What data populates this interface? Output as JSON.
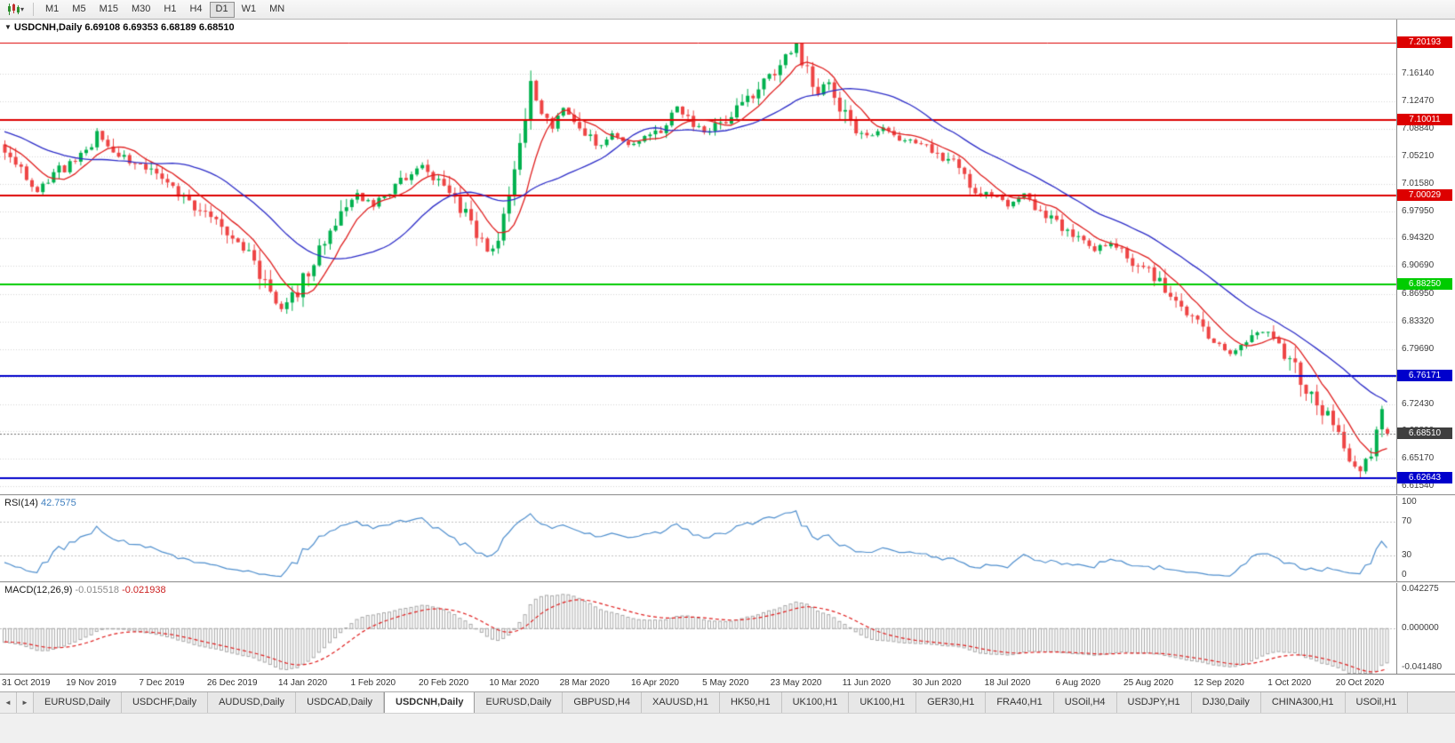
{
  "toolbar": {
    "timeframes": [
      "M1",
      "M5",
      "M15",
      "M30",
      "H1",
      "H4",
      "D1",
      "W1",
      "MN"
    ],
    "active": "D1"
  },
  "icons": {
    "chart_collapse": "▼",
    "toolbar_caret": "▾",
    "tab_scroll_left": "◄",
    "tab_scroll_right": "►"
  },
  "chart_data": {
    "type": "candlestick",
    "symbol": "USDCNH",
    "timeframe": "Daily",
    "title_full": "USDCNH,Daily 6.69108 6.69353 6.68189 6.68510",
    "ohlc": {
      "open": "6.69108",
      "high": "6.69353",
      "low": "6.68189",
      "close": "6.68510"
    },
    "ylim": [
      6.605,
      7.233
    ],
    "y_ticks": [
      {
        "label": "7.16140",
        "value": 7.1614
      },
      {
        "label": "7.12470",
        "value": 7.1247
      },
      {
        "label": "7.08840",
        "value": 7.0884
      },
      {
        "label": "7.05210",
        "value": 7.0521
      },
      {
        "label": "7.01580",
        "value": 7.0158
      },
      {
        "label": "6.97950",
        "value": 6.9795
      },
      {
        "label": "6.94320",
        "value": 6.9432
      },
      {
        "label": "6.90690",
        "value": 6.9069
      },
      {
        "label": "6.86950",
        "value": 6.8695
      },
      {
        "label": "6.83320",
        "value": 6.8332
      },
      {
        "label": "6.79690",
        "value": 6.7969
      },
      {
        "label": "6.76060",
        "value": 6.7606
      },
      {
        "label": "6.72430",
        "value": 6.7243
      },
      {
        "label": "6.68800",
        "value": 6.688
      },
      {
        "label": "6.65170",
        "value": 6.6517
      },
      {
        "label": "6.61540",
        "value": 6.6154
      }
    ],
    "x_labels": [
      "31 Oct 2019",
      "19 Nov 2019",
      "7 Dec 2019",
      "26 Dec 2019",
      "14 Jan 2020",
      "1 Feb 2020",
      "20 Feb 2020",
      "10 Mar 2020",
      "28 Mar 2020",
      "16 Apr 2020",
      "5 May 2020",
      "23 May 2020",
      "11 Jun 2020",
      "30 Jun 2020",
      "18 Jul 2020",
      "6 Aug 2020",
      "25 Aug 2020",
      "12 Sep 2020",
      "1 Oct 2020",
      "20 Oct 2020"
    ],
    "levels": [
      {
        "label": "7.20193",
        "value": 7.20193,
        "color": "#dd0000",
        "line_width": 1
      },
      {
        "label": "7.10011",
        "value": 7.10011,
        "color": "#dd0000",
        "line_width": 2
      },
      {
        "label": "7.00029",
        "value": 7.00029,
        "color": "#dd0000",
        "line_width": 2
      },
      {
        "label": "6.88250",
        "value": 6.8825,
        "color": "#00cc00",
        "line_width": 2
      },
      {
        "label": "6.76171",
        "value": 6.76171,
        "color": "#0000cc",
        "line_width": 2
      },
      {
        "label": "6.62643",
        "value": 6.62643,
        "color": "#0000cc",
        "line_width": 2
      }
    ],
    "current_price": {
      "label": "6.68510",
      "value": 6.6851,
      "badge_color": "#3f3f3f"
    },
    "candle_count": 256,
    "candle_up_color": "#00b14e",
    "candle_down_color": "#ee4444",
    "moving_averages": [
      {
        "name": "fast-ma",
        "period": 8,
        "color": "#e01f1f"
      },
      {
        "name": "slow-ma",
        "period": 25,
        "color": "#2d2dc8"
      }
    ],
    "price_anchors": [
      [
        -40,
        7.152
      ],
      [
        -28,
        7.122
      ],
      [
        -16,
        7.092
      ],
      [
        -6,
        7.072
      ],
      [
        0,
        7.06
      ],
      [
        3,
        7.032
      ],
      [
        6,
        7.006
      ],
      [
        9,
        7.028
      ],
      [
        12,
        7.042
      ],
      [
        15,
        7.054
      ],
      [
        17,
        7.082
      ],
      [
        19,
        7.062
      ],
      [
        23,
        7.044
      ],
      [
        26,
        7.036
      ],
      [
        30,
        7.012
      ],
      [
        34,
        6.99
      ],
      [
        38,
        6.972
      ],
      [
        42,
        6.942
      ],
      [
        45,
        6.918
      ],
      [
        48,
        6.882
      ],
      [
        51,
        6.852
      ],
      [
        53,
        6.864
      ],
      [
        56,
        6.902
      ],
      [
        59,
        6.942
      ],
      [
        62,
        6.978
      ],
      [
        65,
        7.0
      ],
      [
        68,
        6.988
      ],
      [
        71,
        7.008
      ],
      [
        74,
        7.026
      ],
      [
        77,
        7.038
      ],
      [
        80,
        7.02
      ],
      [
        83,
        6.994
      ],
      [
        86,
        6.96
      ],
      [
        89,
        6.928
      ],
      [
        91,
        6.942
      ],
      [
        93,
        6.992
      ],
      [
        95,
        7.072
      ],
      [
        97,
        7.142
      ],
      [
        99,
        7.11
      ],
      [
        101,
        7.09
      ],
      [
        103,
        7.116
      ],
      [
        106,
        7.096
      ],
      [
        109,
        7.064
      ],
      [
        112,
        7.082
      ],
      [
        115,
        7.068
      ],
      [
        118,
        7.078
      ],
      [
        121,
        7.09
      ],
      [
        124,
        7.118
      ],
      [
        126,
        7.1
      ],
      [
        129,
        7.082
      ],
      [
        132,
        7.098
      ],
      [
        135,
        7.112
      ],
      [
        138,
        7.134
      ],
      [
        141,
        7.158
      ],
      [
        144,
        7.186
      ],
      [
        146,
        7.196
      ],
      [
        148,
        7.164
      ],
      [
        150,
        7.134
      ],
      [
        152,
        7.152
      ],
      [
        154,
        7.12
      ],
      [
        156,
        7.094
      ],
      [
        159,
        7.078
      ],
      [
        162,
        7.088
      ],
      [
        165,
        7.074
      ],
      [
        169,
        7.07
      ],
      [
        172,
        7.058
      ],
      [
        175,
        7.042
      ],
      [
        178,
        7.014
      ],
      [
        182,
        6.998
      ],
      [
        185,
        6.988
      ],
      [
        188,
        7.002
      ],
      [
        191,
        6.978
      ],
      [
        195,
        6.958
      ],
      [
        198,
        6.948
      ],
      [
        201,
        6.928
      ],
      [
        204,
        6.938
      ],
      [
        208,
        6.914
      ],
      [
        211,
        6.898
      ],
      [
        214,
        6.874
      ],
      [
        217,
        6.846
      ],
      [
        221,
        6.824
      ],
      [
        223,
        6.802
      ],
      [
        226,
        6.788
      ],
      [
        229,
        6.806
      ],
      [
        232,
        6.82
      ],
      [
        234,
        6.812
      ],
      [
        236,
        6.794
      ],
      [
        238,
        6.768
      ],
      [
        240,
        6.748
      ],
      [
        242,
        6.722
      ],
      [
        244,
        6.706
      ],
      [
        246,
        6.69
      ],
      [
        248,
        6.658
      ],
      [
        250,
        6.63
      ],
      [
        252,
        6.654
      ],
      [
        253,
        6.694
      ],
      [
        254,
        6.716
      ],
      [
        255,
        6.685
      ]
    ],
    "indicators": {
      "rsi": {
        "label": "RSI(14)",
        "value": "42.7575",
        "line_color": "#4f8fce",
        "ticks": [
          {
            "label": "100",
            "value": 100
          },
          {
            "label": "70",
            "value": 70
          },
          {
            "label": "30",
            "value": 30
          },
          {
            "label": "0",
            "value": 0
          }
        ],
        "guide_levels": [
          70,
          30
        ]
      },
      "macd": {
        "label": "MACD(12,26,9)",
        "main_value": "-0.015518",
        "signal_value": "-0.021938",
        "bar_color": "#a9a9a9",
        "signal_color": "#e01f1f",
        "ticks": [
          {
            "label": "0.042275",
            "value": 0.042275
          },
          {
            "label": "0.000000",
            "value": 0
          },
          {
            "label": "-0.041480",
            "value": -0.04148
          }
        ]
      }
    }
  },
  "tabs": {
    "items": [
      "EURUSD,Daily",
      "USDCHF,Daily",
      "AUDUSD,Daily",
      "USDCAD,Daily",
      "USDCNH,Daily",
      "EURUSD,Daily",
      "GBPUSD,H4",
      "XAUUSD,H1",
      "HK50,H1",
      "UK100,H1",
      "UK100,H1",
      "GER30,H1",
      "FRA40,H1",
      "USOil,H4",
      "USDJPY,H1",
      "DJ30,Daily",
      "CHINA300,H1",
      "USOil,H1"
    ],
    "active_index": 4
  }
}
